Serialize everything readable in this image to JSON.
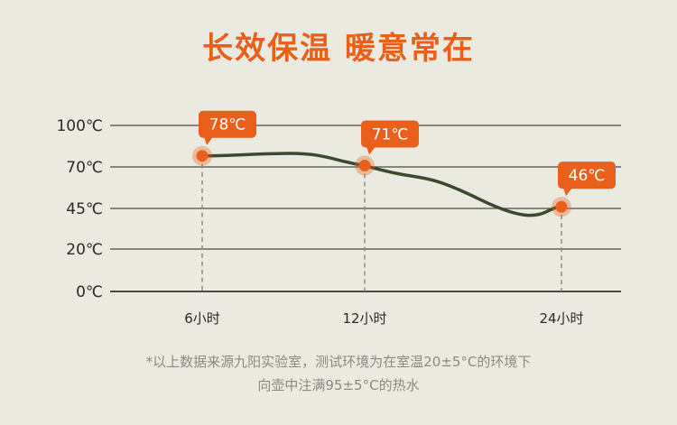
{
  "title": "长效保温 暖意常在",
  "colors": {
    "accent": "#e8601c",
    "line": "#3b4a2b",
    "grid": "#4a4a44",
    "background": "#eaeae1"
  },
  "chart_data": {
    "type": "line",
    "categories": [
      "6小时",
      "12小时",
      "24小时"
    ],
    "values": [
      78,
      71,
      46
    ],
    "data_labels": [
      "78℃",
      "71℃",
      "46℃"
    ],
    "y_ticks": [
      0,
      20,
      45,
      70,
      100
    ],
    "y_tick_labels": [
      "0℃",
      "20℃",
      "45℃",
      "70℃",
      "100℃"
    ],
    "ylim": [
      0,
      100
    ],
    "grid": true
  },
  "footnote": {
    "line1": "*以上数据来源九阳实验室，测试环境为在室温20±5°C的环境下",
    "line2": "向壶中注满95±5°C的热水"
  }
}
